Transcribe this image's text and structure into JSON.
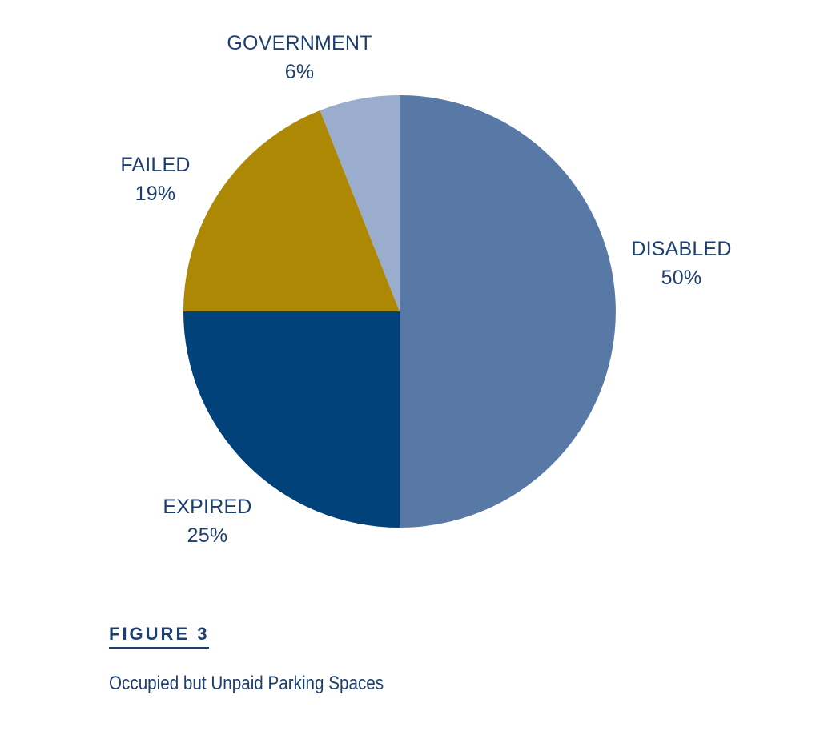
{
  "figure": {
    "label": "FIGURE 3",
    "caption": "Occupied but Unpaid Parking Spaces"
  },
  "chart_data": {
    "type": "pie",
    "start_angle_deg": 0,
    "direction": "clockwise",
    "slices": [
      {
        "name": "DISABLED",
        "value": 50,
        "value_label": "50%",
        "color": "#5878a6"
      },
      {
        "name": "EXPIRED",
        "value": 25,
        "value_label": "25%",
        "color": "#02427a"
      },
      {
        "name": "FAILED",
        "value": 19,
        "value_label": "19%",
        "color": "#ad8804"
      },
      {
        "name": "GOVERNMENT",
        "value": 6,
        "value_label": "6%",
        "color": "#9badcd"
      }
    ]
  }
}
